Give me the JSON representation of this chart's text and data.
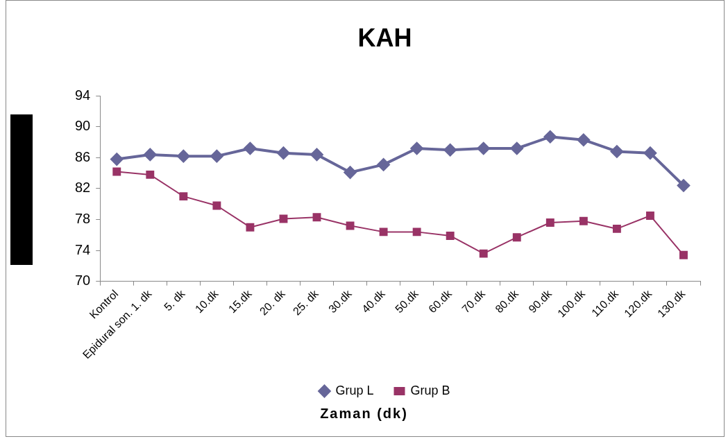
{
  "chart_data": {
    "type": "line",
    "title": "KAH",
    "xlabel": "Zaman (dk)",
    "categories": [
      "Kontrol",
      "Epidural son. 1. dk",
      "5. dk",
      "10.dk",
      "15.dk",
      "20. dk",
      "25. dk",
      "30.dk",
      "40.dk",
      "50.dk",
      "60.dk",
      "70.dk",
      "80.dk",
      "90.dk",
      "100.dk",
      "110.dk",
      "120.dk",
      "130.dk"
    ],
    "series": [
      {
        "name": "Grup L",
        "color": "#666699",
        "marker": "diamond",
        "values": [
          85.8,
          86.4,
          86.2,
          86.2,
          87.2,
          86.6,
          86.4,
          84.1,
          85.1,
          87.2,
          87.0,
          87.2,
          87.2,
          88.7,
          88.3,
          86.8,
          86.6,
          82.4
        ]
      },
      {
        "name": "Grup B",
        "color": "#993366",
        "marker": "square",
        "values": [
          84.2,
          83.8,
          81.0,
          79.8,
          77.0,
          78.1,
          78.3,
          77.2,
          76.4,
          76.4,
          75.9,
          73.6,
          75.7,
          77.6,
          77.8,
          76.8,
          78.5,
          73.4
        ]
      }
    ],
    "ylim": [
      70,
      94
    ],
    "yticks": [
      70,
      74,
      78,
      82,
      86,
      90,
      94
    ],
    "grid": false,
    "legend": "bottom"
  }
}
